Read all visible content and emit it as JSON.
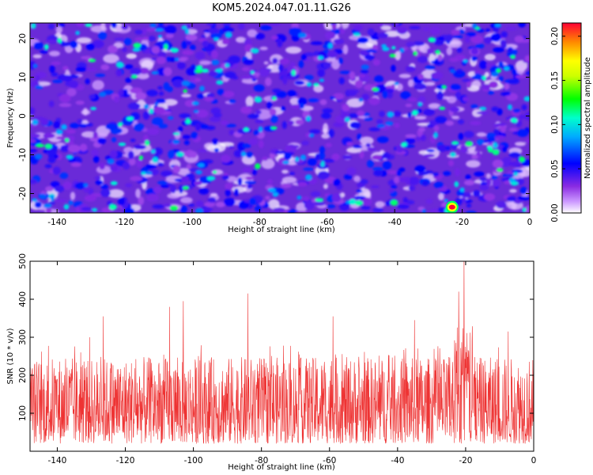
{
  "title": "KOM5.2024.047.01.11.G26",
  "chart_data": [
    {
      "type": "heatmap",
      "xlabel": "Height of straight line (km)",
      "ylabel": "Frequency (Hz)",
      "xlim": [
        -148,
        0
      ],
      "ylim": [
        -25,
        24
      ],
      "xticks": [
        -140,
        -120,
        -100,
        -80,
        -60,
        -40,
        -20,
        0
      ],
      "yticks": [
        -20,
        -10,
        0,
        10,
        20
      ],
      "colorbar": {
        "label": "Normalized spectral amplitude",
        "range": [
          0,
          0.215
        ],
        "ticks": [
          "0.00",
          "0.05",
          "0.10",
          "0.15",
          "0.20"
        ],
        "colormap": "rainbow"
      },
      "peak": {
        "x": -23,
        "y": -23.5,
        "value": 0.215
      },
      "background_amplitude_range": [
        0.0,
        0.1
      ]
    },
    {
      "type": "line",
      "xlabel": "Height of straight line (km)",
      "ylabel": "SNR (10 * v/v)",
      "xlim": [
        -148,
        0
      ],
      "ylim": [
        0,
        500
      ],
      "xticks": [
        -140,
        -120,
        -100,
        -80,
        -60,
        -40,
        -20,
        0
      ],
      "yticks": [
        100,
        200,
        300,
        400,
        500
      ],
      "series_color": "#ee3333",
      "baseline_range": [
        20,
        260
      ],
      "peaks": [
        {
          "x": -130.5,
          "y": 300
        },
        {
          "x": -126.5,
          "y": 355
        },
        {
          "x": -107,
          "y": 380
        },
        {
          "x": -103,
          "y": 395
        },
        {
          "x": -84,
          "y": 415
        },
        {
          "x": -59,
          "y": 355
        },
        {
          "x": -35,
          "y": 345
        },
        {
          "x": -22,
          "y": 420
        },
        {
          "x": -20.5,
          "y": 500
        },
        {
          "x": -7.5,
          "y": 315
        }
      ]
    }
  ]
}
